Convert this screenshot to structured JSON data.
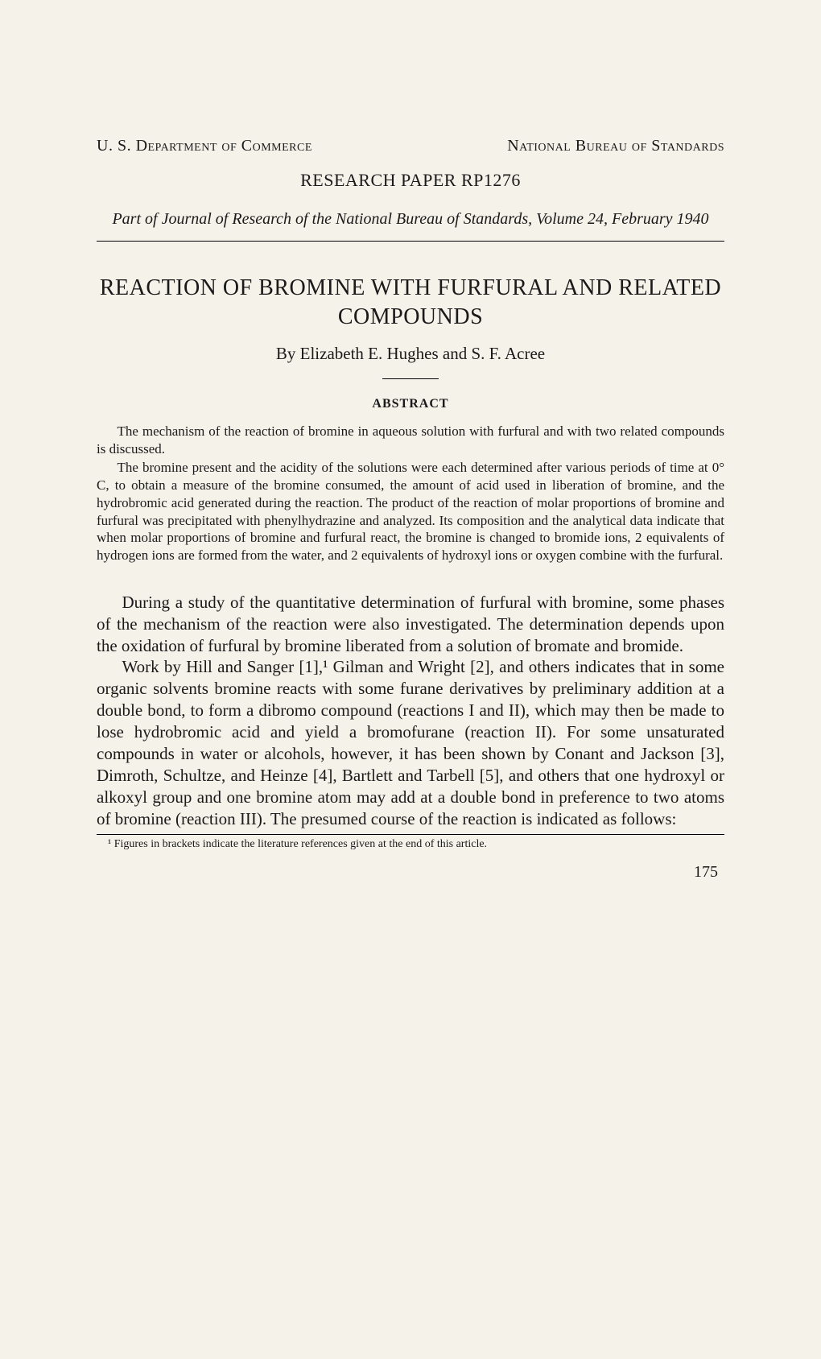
{
  "header": {
    "left": "U. S. Department of Commerce",
    "right": "National Bureau of Standards"
  },
  "paper_id": "RESEARCH PAPER RP1276",
  "journal_line": "Part of Journal of Research of the National Bureau of Standards, Volume 24, February 1940",
  "title": "REACTION OF BROMINE WITH FURFURAL AND RELATED COMPOUNDS",
  "authors": "By Elizabeth E. Hughes and S. F. Acree",
  "abstract_heading": "ABSTRACT",
  "abstract_p1": "The mechanism of the reaction of bromine in aqueous solution with furfural and with two related compounds is discussed.",
  "abstract_p2": "The bromine present and the acidity of the solutions were each determined after various periods of time at 0° C, to obtain a measure of the bromine consumed, the amount of acid used in liberation of bromine, and the hydrobromic acid generated during the reaction. The product of the reaction of molar proportions of bromine and furfural was precipitated with phenylhydrazine and analyzed. Its composition and the analytical data indicate that when molar proportions of bromine and furfural react, the bromine is changed to bromide ions, 2 equivalents of hydrogen ions are formed from the water, and 2 equivalents of hydroxyl ions or oxygen combine with the furfural.",
  "body_p1": "During a study of the quantitative determination of furfural with bromine, some phases of the mechanism of the reaction were also investigated. The determination depends upon the oxidation of furfural by bromine liberated from a solution of bromate and bromide.",
  "body_p2": "Work by Hill and Sanger [1],¹ Gilman and Wright [2], and others indicates that in some organic solvents bromine reacts with some furane derivatives by preliminary addition at a double bond, to form a dibromo compound (reactions I and II), which may then be made to lose hydrobromic acid and yield a bromofurane (reaction II). For some unsaturated compounds in water or alcohols, however, it has been shown by Conant and Jackson [3], Dimroth, Schultze, and Heinze [4], Bartlett and Tarbell [5], and others that one hydroxyl or alkoxyl group and one bromine atom may add at a double bond in preference to two atoms of bromine (reaction III). The presumed course of the reaction is indicated as follows:",
  "footnote": "¹ Figures in brackets indicate the literature references given at the end of this article.",
  "page_number": "175",
  "colors": {
    "background": "#f5f2ea",
    "text": "#1a1a1a",
    "rule": "#000000"
  },
  "typography": {
    "body_font": "Times New Roman",
    "header_fontsize": 20,
    "title_fontsize": 28,
    "body_fontsize": 21,
    "abstract_fontsize": 17,
    "footnote_fontsize": 14
  }
}
